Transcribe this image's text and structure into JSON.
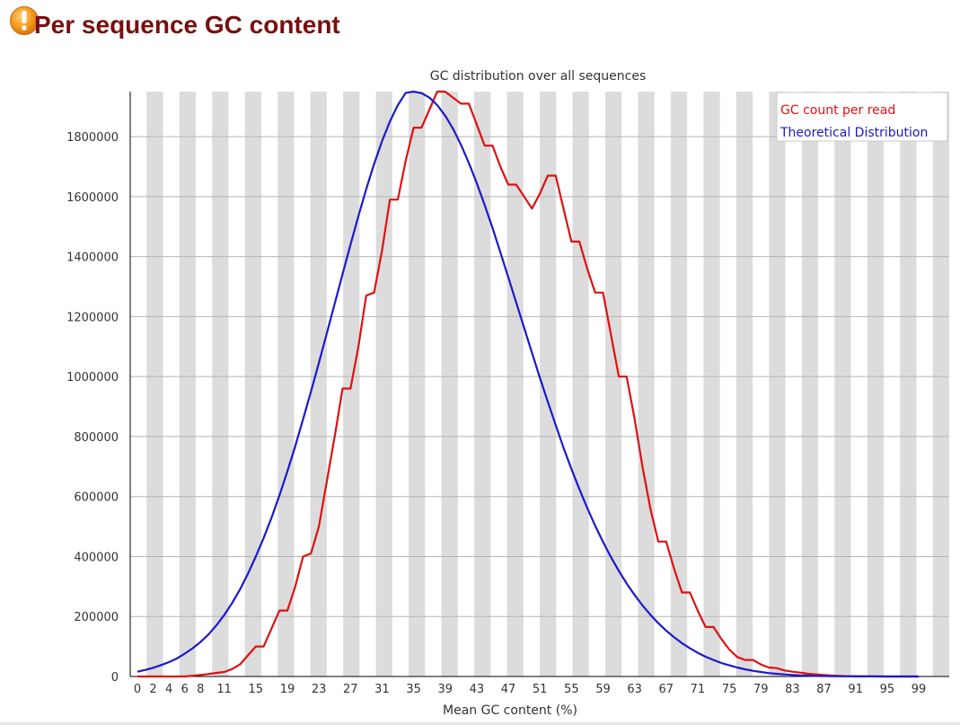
{
  "page": {
    "title": "Per sequence GC content",
    "status_icon": "warning-icon"
  },
  "colors": {
    "title": "#7a0e0e",
    "gc_count": "#dd1111",
    "theoretical": "#1a1acc",
    "band": "#dcdcdc",
    "grid": "#b5b5b5",
    "icon": "#f29a1f"
  },
  "chart_data": {
    "type": "line",
    "title": "GC distribution over all sequences",
    "xlabel": "Mean GC content (%)",
    "ylabel": "",
    "xlim": [
      0,
      100
    ],
    "ylim": [
      0,
      1950000
    ],
    "grid": true,
    "alternating_bands": true,
    "legend_position": "top-right",
    "x_tick_labels": [
      "0",
      "2",
      "4",
      "6",
      "8",
      "11",
      "15",
      "19",
      "23",
      "27",
      "31",
      "35",
      "39",
      "43",
      "47",
      "51",
      "55",
      "59",
      "63",
      "67",
      "71",
      "75",
      "79",
      "83",
      "87",
      "91",
      "95",
      "99"
    ],
    "y_ticks": [
      0,
      200000,
      400000,
      600000,
      800000,
      1000000,
      1200000,
      1400000,
      1600000,
      1800000
    ],
    "series": [
      {
        "name": "GC count per read",
        "color": "#dd1111",
        "x": [
          0,
          2,
          4,
          6,
          8,
          9,
          10,
          11,
          12,
          13,
          14,
          15,
          16,
          17,
          18,
          19,
          20,
          21,
          22,
          23,
          24,
          25,
          26,
          27,
          28,
          29,
          30,
          31,
          32,
          33,
          34,
          35,
          36,
          37,
          38,
          39,
          40,
          41,
          42,
          43,
          44,
          45,
          46,
          47,
          48,
          49,
          50,
          51,
          52,
          53,
          54,
          55,
          56,
          57,
          58,
          59,
          60,
          61,
          62,
          63,
          64,
          65,
          66,
          67,
          68,
          69,
          70,
          71,
          72,
          73,
          74,
          75,
          76,
          77,
          78,
          79,
          80,
          81,
          82,
          83,
          84,
          85,
          86,
          87,
          88,
          89,
          90,
          91,
          92,
          93,
          94,
          95,
          96,
          97,
          98,
          99
        ],
        "y": [
          0,
          0,
          0,
          0,
          5000,
          8000,
          12000,
          15000,
          25000,
          40000,
          70000,
          100000,
          100000,
          160000,
          220000,
          220000,
          300000,
          400000,
          410000,
          500000,
          650000,
          800000,
          960000,
          960000,
          1100000,
          1270000,
          1280000,
          1420000,
          1590000,
          1590000,
          1720000,
          1830000,
          1830000,
          1890000,
          1950000,
          1950000,
          1930000,
          1910000,
          1910000,
          1840000,
          1770000,
          1770000,
          1700000,
          1640000,
          1640000,
          1600000,
          1560000,
          1610000,
          1670000,
          1670000,
          1560000,
          1450000,
          1450000,
          1360000,
          1280000,
          1280000,
          1140000,
          1000000,
          1000000,
          860000,
          700000,
          560000,
          450000,
          450000,
          360000,
          280000,
          280000,
          220000,
          165000,
          165000,
          125000,
          90000,
          65000,
          55000,
          55000,
          40000,
          30000,
          28000,
          20000,
          16000,
          13000,
          9000,
          7000,
          5000,
          3000,
          2000,
          1000,
          800,
          500,
          300,
          200,
          100,
          50,
          20,
          10,
          0
        ]
      },
      {
        "name": "Theoretical Distribution",
        "color": "#1a1acc",
        "x": [
          0,
          1,
          2,
          3,
          4,
          5,
          6,
          7,
          8,
          9,
          10,
          11,
          12,
          13,
          14,
          15,
          16,
          17,
          18,
          19,
          20,
          21,
          22,
          23,
          24,
          25,
          26,
          27,
          28,
          29,
          30,
          31,
          32,
          33,
          34,
          35,
          36,
          37,
          38,
          39,
          40,
          41,
          42,
          43,
          44,
          45,
          46,
          47,
          48,
          49,
          50,
          51,
          52,
          53,
          54,
          55,
          56,
          57,
          58,
          59,
          60,
          61,
          62,
          63,
          64,
          65,
          66,
          67,
          68,
          69,
          70,
          71,
          72,
          73,
          74,
          75,
          76,
          77,
          78,
          79,
          80,
          81,
          82,
          83,
          84,
          85,
          86,
          87,
          88,
          89,
          90,
          91,
          92,
          93,
          94,
          95,
          96,
          97,
          98,
          99
        ],
        "y": [
          16000,
          22000,
          29000,
          38000,
          48000,
          60000,
          76000,
          94000,
          115000,
          140000,
          170000,
          205000,
          245000,
          290000,
          342000,
          400000,
          462000,
          530000,
          604000,
          684000,
          768000,
          858000,
          950000,
          1046000,
          1144000,
          1243000,
          1342000,
          1440000,
          1535000,
          1625000,
          1709000,
          1785000,
          1851000,
          1905000,
          1946000,
          1950000,
          1945000,
          1930000,
          1905000,
          1870000,
          1826000,
          1773000,
          1712000,
          1645000,
          1572000,
          1495000,
          1414000,
          1331000,
          1247000,
          1163000,
          1079000,
          996000,
          916000,
          838000,
          763000,
          692000,
          625000,
          562000,
          503000,
          449000,
          398000,
          352000,
          310000,
          272000,
          237000,
          206000,
          178000,
          153000,
          131000,
          111000,
          94000,
          79000,
          66000,
          55000,
          45000,
          37000,
          30000,
          24000,
          19000,
          15000,
          11500,
          9000,
          6800,
          5000,
          3700,
          2700,
          1900,
          1400,
          1000,
          700,
          500,
          350,
          240,
          160,
          110,
          70,
          45,
          30,
          20,
          10
        ]
      }
    ]
  }
}
